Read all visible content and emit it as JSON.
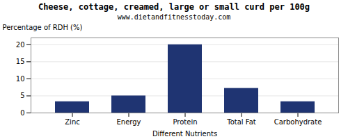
{
  "chart_data": {
    "type": "bar",
    "title": "Cheese, cottage, creamed, large or small curd per 100g",
    "subtitle": "www.dietandfitnesstoday.com",
    "xlabel": "Different Nutrients",
    "ylabel": "Percentage of RDH (%)",
    "categories": [
      "Zinc",
      "Energy",
      "Protein",
      "Total Fat",
      "Carbohydrate"
    ],
    "values": [
      3.3,
      5.0,
      20.0,
      7.2,
      3.3
    ],
    "color": "#1f3472",
    "ylim": [
      0,
      22
    ],
    "yticks": [
      0,
      5,
      10,
      15,
      20
    ],
    "grid": true
  }
}
